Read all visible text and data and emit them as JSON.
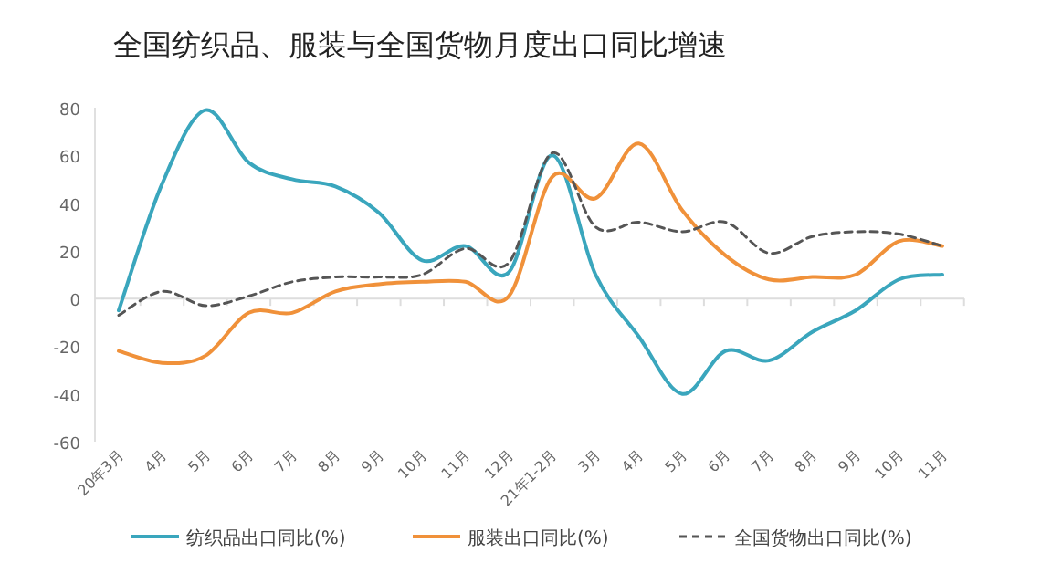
{
  "chart_data": {
    "type": "line",
    "title": "全国纺织品、服装与全国货物月度出口同比增速",
    "categories": [
      "20年3月",
      "4月",
      "5月",
      "6月",
      "7月",
      "8月",
      "9月",
      "10月",
      "11月",
      "12月",
      "21年1-2月",
      "3月",
      "4月",
      "5月",
      "6月",
      "7月",
      "8月",
      "9月",
      "10月",
      "11月"
    ],
    "series": [
      {
        "name": "纺织品出口同比(%)",
        "color": "#3aa6bd",
        "line_style": "solid",
        "values": [
          -5,
          48,
          79,
          57,
          50,
          47,
          36,
          16,
          22,
          11,
          60,
          10,
          -16,
          -40,
          -22,
          -26,
          -14,
          -5,
          8,
          10
        ]
      },
      {
        "name": "服装出口同比(%)",
        "color": "#f0913a",
        "line_style": "solid",
        "values": [
          -22,
          -27,
          -24,
          -6,
          -6,
          3,
          6,
          7,
          7,
          1,
          51,
          42,
          65,
          37,
          18,
          8,
          9,
          10,
          24,
          22
        ]
      },
      {
        "name": "全国货物出口同比(%)",
        "color": "#555555",
        "line_style": "dashed",
        "values": [
          -7,
          3,
          -3,
          1,
          7,
          9,
          9,
          10,
          21,
          15,
          61,
          30,
          32,
          28,
          32,
          19,
          26,
          28,
          27,
          22
        ]
      }
    ],
    "ylim": [
      -60,
      80
    ],
    "yticks": [
      -60,
      -40,
      -20,
      0,
      20,
      40,
      60,
      80
    ],
    "legend": "bottom"
  }
}
